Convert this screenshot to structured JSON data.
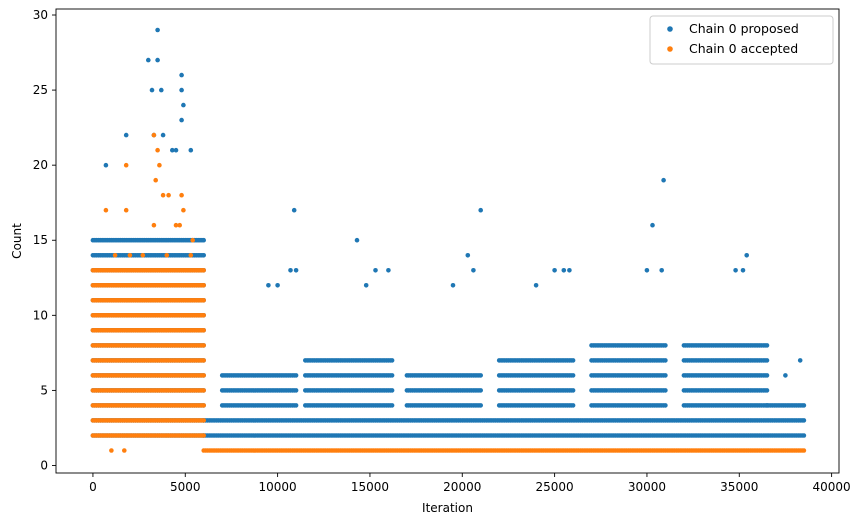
{
  "chart_data": {
    "type": "scatter",
    "title": "",
    "xlabel": "Iteration",
    "ylabel": "Count",
    "xlim": [
      -2000,
      40400
    ],
    "ylim": [
      -0.5,
      30.4
    ],
    "xticks": [
      0,
      5000,
      10000,
      15000,
      20000,
      25000,
      30000,
      35000,
      40000
    ],
    "yticks": [
      0,
      5,
      10,
      15,
      20,
      25,
      30
    ],
    "grid": false,
    "legend_position": "top-right",
    "series": [
      {
        "name": "Chain 0 proposed",
        "color": "#1f77b4",
        "dense_bands": [
          {
            "from": 0,
            "to": 6000,
            "counts": [
              2,
              3,
              4,
              5,
              6,
              7,
              8,
              9,
              10,
              11,
              12,
              13,
              14,
              15
            ]
          },
          {
            "from": 6000,
            "to": 38500,
            "counts": [
              2,
              3
            ]
          },
          {
            "from": 7000,
            "to": 11000,
            "counts": [
              4,
              5,
              6
            ]
          },
          {
            "from": 11500,
            "to": 16200,
            "counts": [
              4,
              5,
              6,
              7
            ]
          },
          {
            "from": 17000,
            "to": 21000,
            "counts": [
              4,
              5,
              6
            ]
          },
          {
            "from": 22000,
            "to": 26000,
            "counts": [
              4,
              5,
              6,
              7
            ]
          },
          {
            "from": 27000,
            "to": 31000,
            "counts": [
              4,
              5,
              6,
              7,
              8
            ]
          },
          {
            "from": 32000,
            "to": 36500,
            "counts": [
              4,
              5,
              6,
              7,
              8
            ]
          },
          {
            "from": 36500,
            "to": 38500,
            "counts": [
              4
            ]
          }
        ],
        "outliers": [
          [
            3500,
            29
          ],
          [
            3000,
            27
          ],
          [
            3500,
            27
          ],
          [
            4800,
            26
          ],
          [
            3200,
            25
          ],
          [
            3700,
            25
          ],
          [
            4800,
            25
          ],
          [
            4900,
            24
          ],
          [
            1800,
            22
          ],
          [
            4800,
            23
          ],
          [
            700,
            20
          ],
          [
            4300,
            21
          ],
          [
            4500,
            21
          ],
          [
            5300,
            21
          ],
          [
            3300,
            22
          ],
          [
            3800,
            22
          ],
          [
            10900,
            17
          ],
          [
            14300,
            15
          ],
          [
            21000,
            17
          ],
          [
            30900,
            19
          ],
          [
            30300,
            16
          ],
          [
            35400,
            14
          ],
          [
            9500,
            12
          ],
          [
            10000,
            12
          ],
          [
            10700,
            13
          ],
          [
            11000,
            13
          ],
          [
            15300,
            13
          ],
          [
            16000,
            13
          ],
          [
            14800,
            12
          ],
          [
            20300,
            14
          ],
          [
            20600,
            13
          ],
          [
            25000,
            13
          ],
          [
            25500,
            13
          ],
          [
            25800,
            13
          ],
          [
            30000,
            13
          ],
          [
            30800,
            13
          ],
          [
            35200,
            13
          ],
          [
            34800,
            13
          ],
          [
            38300,
            7
          ],
          [
            37500,
            6
          ],
          [
            24000,
            12
          ],
          [
            19500,
            12
          ]
        ]
      },
      {
        "name": "Chain 0 accepted",
        "color": "#ff7f0e",
        "dense_bands": [
          {
            "from": 0,
            "to": 6000,
            "counts": [
              2,
              3,
              4,
              5,
              6,
              7,
              8,
              9,
              10,
              11,
              12,
              13
            ]
          },
          {
            "from": 6000,
            "to": 38500,
            "counts": [
              1
            ]
          }
        ],
        "outliers": [
          [
            3300,
            22
          ],
          [
            1800,
            20
          ],
          [
            3500,
            21
          ],
          [
            3600,
            20
          ],
          [
            3400,
            19
          ],
          [
            700,
            17
          ],
          [
            1800,
            17
          ],
          [
            3800,
            18
          ],
          [
            4100,
            18
          ],
          [
            4800,
            18
          ],
          [
            4900,
            17
          ],
          [
            3300,
            16
          ],
          [
            4700,
            16
          ],
          [
            4500,
            16
          ],
          [
            5400,
            15
          ],
          [
            1200,
            14
          ],
          [
            2000,
            14
          ],
          [
            2700,
            14
          ],
          [
            4000,
            14
          ],
          [
            5300,
            14
          ],
          [
            1000,
            1
          ],
          [
            1700,
            1
          ]
        ]
      }
    ]
  }
}
